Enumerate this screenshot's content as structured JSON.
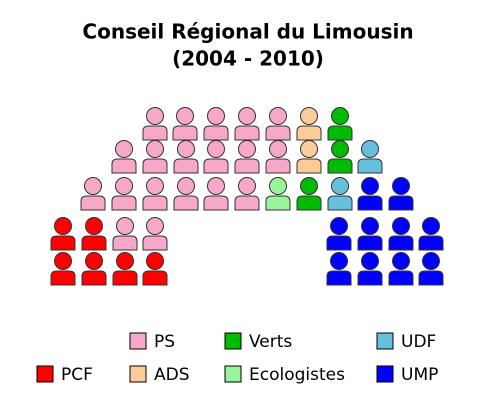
{
  "chart_data": {
    "type": "parliament",
    "title": "Conseil Régional du Limousin",
    "subtitle": "(2004 - 2010)",
    "parties": [
      {
        "name": "PCF",
        "color": "#ff0000",
        "seats": 6
      },
      {
        "name": "PS",
        "color": "#f7a8c8",
        "seats": 19
      },
      {
        "name": "ADS",
        "color": "#fbcc99",
        "seats": 2
      },
      {
        "name": "Ecologistes",
        "color": "#99f599",
        "seats": 1
      },
      {
        "name": "Verts",
        "color": "#00bb00",
        "seats": 3
      },
      {
        "name": "UDF",
        "color": "#66c0dd",
        "seats": 2
      },
      {
        "name": "UMP",
        "color": "#0000ff",
        "seats": 10
      }
    ]
  }
}
